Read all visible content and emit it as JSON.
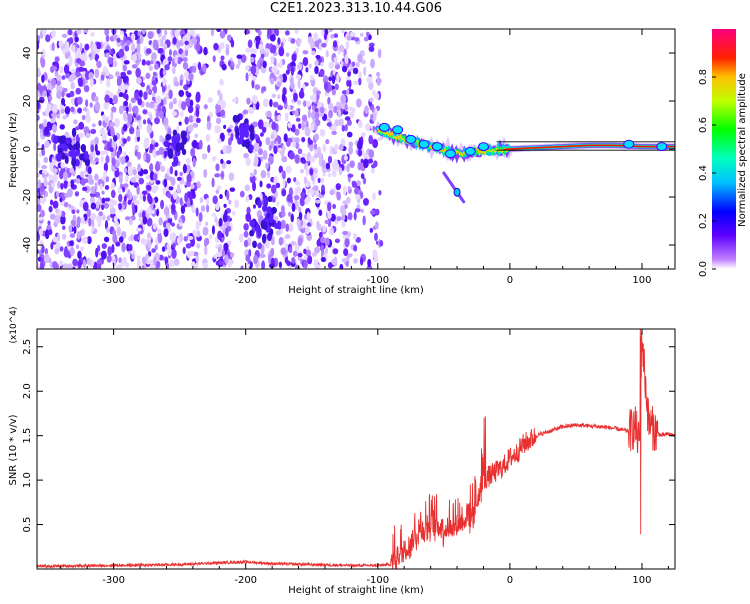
{
  "title": "C2E1.2023.313.10.44.G06",
  "chart_data": [
    {
      "type": "heatmap",
      "panel": "spectrogram",
      "xlabel": "Height of straight line (km)",
      "ylabel": "Frequency (Hz)",
      "xlim": [
        -358,
        125
      ],
      "ylim": [
        -50,
        50
      ],
      "xticks": [
        -300,
        -200,
        -100,
        0,
        100
      ],
      "yticks": [
        -40,
        -20,
        0,
        20,
        40
      ],
      "colorbar": {
        "label": "Normalized spectral amplitude",
        "range": [
          0,
          1
        ],
        "ticks": [
          0.0,
          0.2,
          0.4,
          0.6,
          0.8
        ],
        "colors": [
          "#ffffff",
          "#8000ff",
          "#0000ff",
          "#00ffff",
          "#00ff00",
          "#ffff00",
          "#ff0000",
          "#ff0080"
        ]
      },
      "features": {
        "noise_region_x": [
          -358,
          -97
        ],
        "noise_gap_x": [
          -210,
          -200
        ],
        "signal_line": {
          "x": [
            -100,
            -80,
            -60,
            -40,
            -20,
            0,
            20,
            40,
            60,
            80,
            100,
            125
          ],
          "y": [
            8,
            4,
            1,
            -2,
            -1,
            0,
            0.5,
            1,
            1.5,
            1.5,
            1,
            1
          ]
        },
        "spur": {
          "x": [
            -50,
            -35
          ],
          "y": [
            -10,
            -22
          ]
        }
      }
    },
    {
      "type": "line",
      "panel": "snr",
      "xlabel": "Height of straight line (km)",
      "ylabel": "SNR (10 * v/v)",
      "yscale_label": "(x10^4)",
      "xlim": [
        -358,
        125
      ],
      "ylim": [
        0,
        2.7
      ],
      "xticks": [
        -300,
        -200,
        -100,
        0,
        100
      ],
      "yticks": [
        0.5,
        1.0,
        1.5,
        2.0,
        2.5
      ],
      "line_color": "#e83030",
      "series": [
        {
          "x": [
            -358,
            -300,
            -250,
            -220,
            -200,
            -180,
            -150,
            -120,
            -100,
            -90,
            -80,
            -70,
            -60,
            -50,
            -40,
            -30,
            -25,
            -20,
            -15,
            -10,
            -5,
            0,
            5,
            10,
            20,
            30,
            40,
            50,
            60,
            70,
            80,
            90,
            95,
            98,
            100,
            105,
            110,
            115,
            120,
            125
          ],
          "values": [
            0.03,
            0.04,
            0.05,
            0.07,
            0.08,
            0.06,
            0.05,
            0.04,
            0.04,
            0.05,
            0.15,
            0.35,
            0.45,
            0.4,
            0.45,
            0.55,
            0.7,
            1.0,
            1.05,
            1.1,
            1.15,
            1.25,
            1.3,
            1.4,
            1.5,
            1.55,
            1.6,
            1.62,
            1.61,
            1.6,
            1.58,
            1.55,
            1.6,
            1.4,
            2.6,
            1.65,
            1.55,
            1.5,
            1.52,
            1.5
          ]
        }
      ]
    }
  ]
}
